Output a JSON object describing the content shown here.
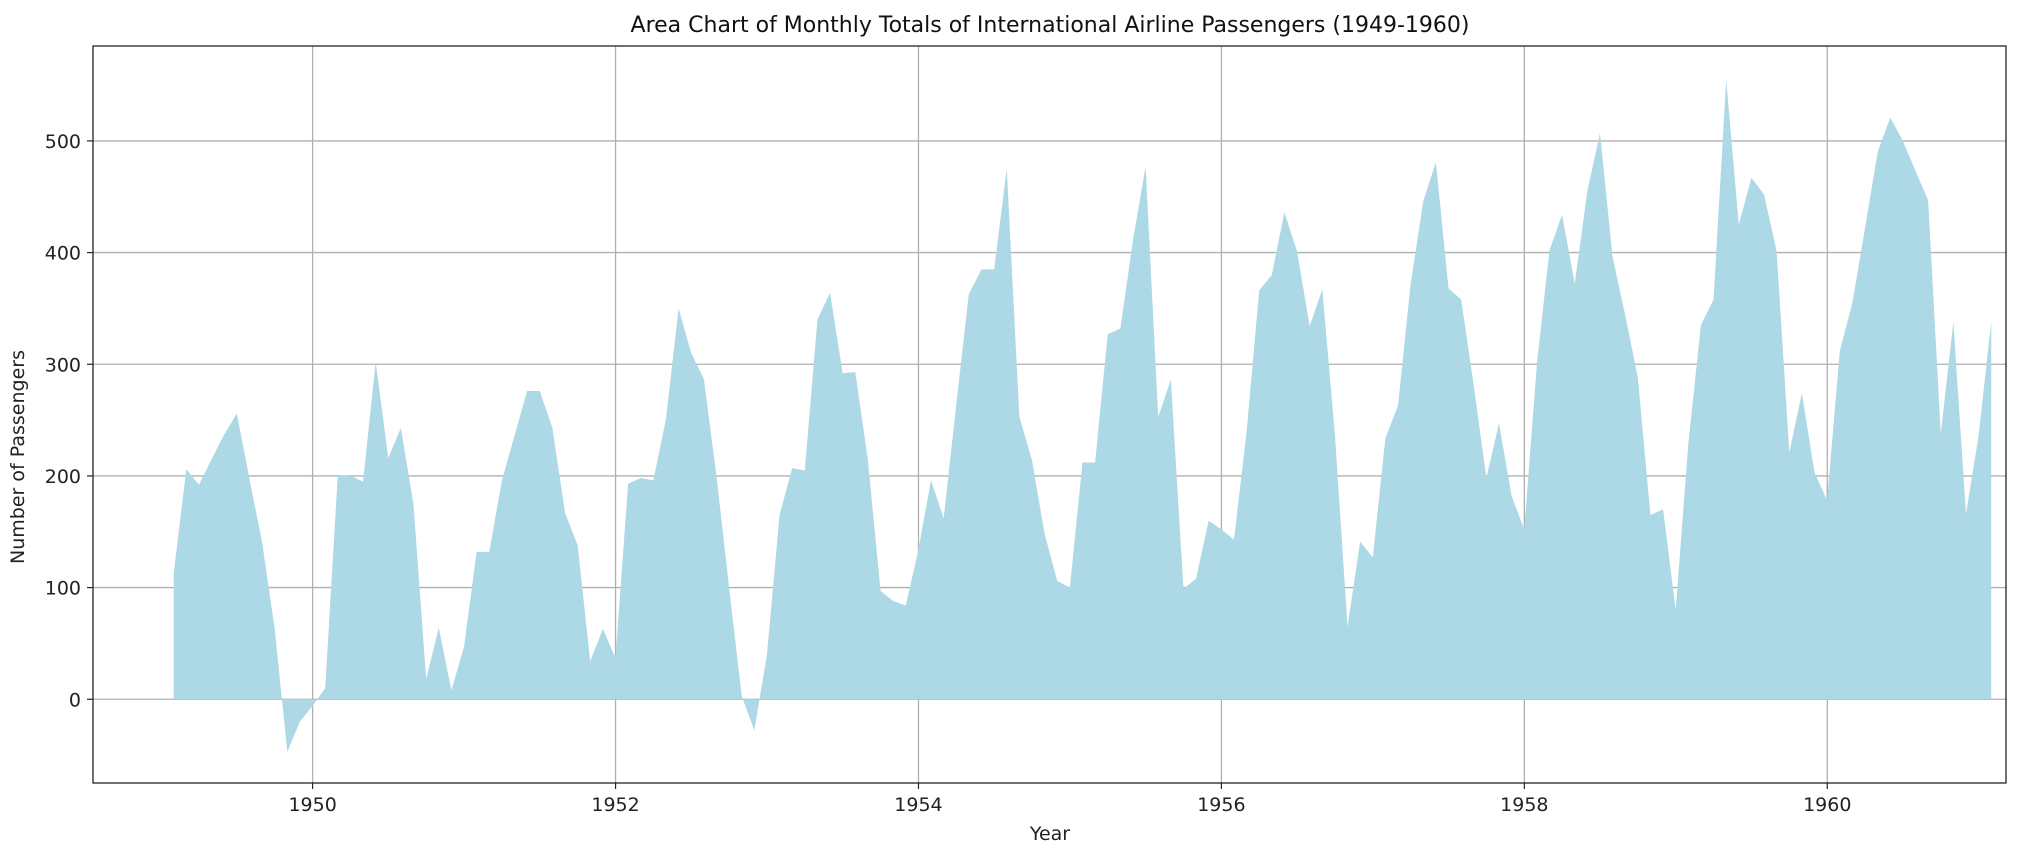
{
  "chart_data": {
    "type": "area",
    "title": "Area Chart of Monthly Totals of International Airline Passengers (1949-1960)",
    "xlabel": "Year",
    "ylabel": "Number of Passengers",
    "xlim": [
      1948.55,
      1961.18
    ],
    "ylim": [
      -75,
      585
    ],
    "x_ticks": [
      1950,
      1952,
      1954,
      1956,
      1958,
      1960
    ],
    "y_ticks": [
      0,
      100,
      200,
      300,
      400,
      500
    ],
    "grid": true,
    "fill_color": "#add8e6",
    "x_start": 1949.083,
    "x_step": 0.08333,
    "values": [
      113,
      206,
      192,
      215,
      237,
      256,
      197,
      141,
      63,
      -47,
      -20,
      -6,
      10,
      201,
      200,
      195,
      302,
      216,
      243,
      174,
      18,
      64,
      8,
      47,
      132,
      132,
      196,
      236,
      276,
      276,
      243,
      167,
      138,
      34,
      63,
      37,
      193,
      198,
      196,
      251,
      350,
      310,
      287,
      200,
      100,
      3,
      -28,
      40,
      165,
      207,
      205,
      340,
      364,
      292,
      293,
      214,
      97,
      88,
      84,
      134,
      196,
      162,
      264,
      363,
      385,
      385,
      475,
      253,
      214,
      148,
      106,
      100,
      212,
      212,
      327,
      332,
      411,
      477,
      253,
      286,
      99,
      108,
      160,
      152,
      143,
      239,
      366,
      380,
      436,
      401,
      334,
      367,
      237,
      65,
      141,
      127,
      234,
      263,
      372,
      446,
      481,
      368,
      358,
      281,
      198,
      247,
      182,
      152,
      300,
      402,
      434,
      372,
      455,
      507,
      396,
      344,
      288,
      165,
      170,
      80,
      229,
      335,
      358,
      555,
      425,
      467,
      452,
      401,
      221,
      274,
      203,
      178,
      312,
      355,
      422,
      490,
      521,
      500,
      473,
      447,
      238,
      338,
      166,
      236,
      338
    ]
  }
}
